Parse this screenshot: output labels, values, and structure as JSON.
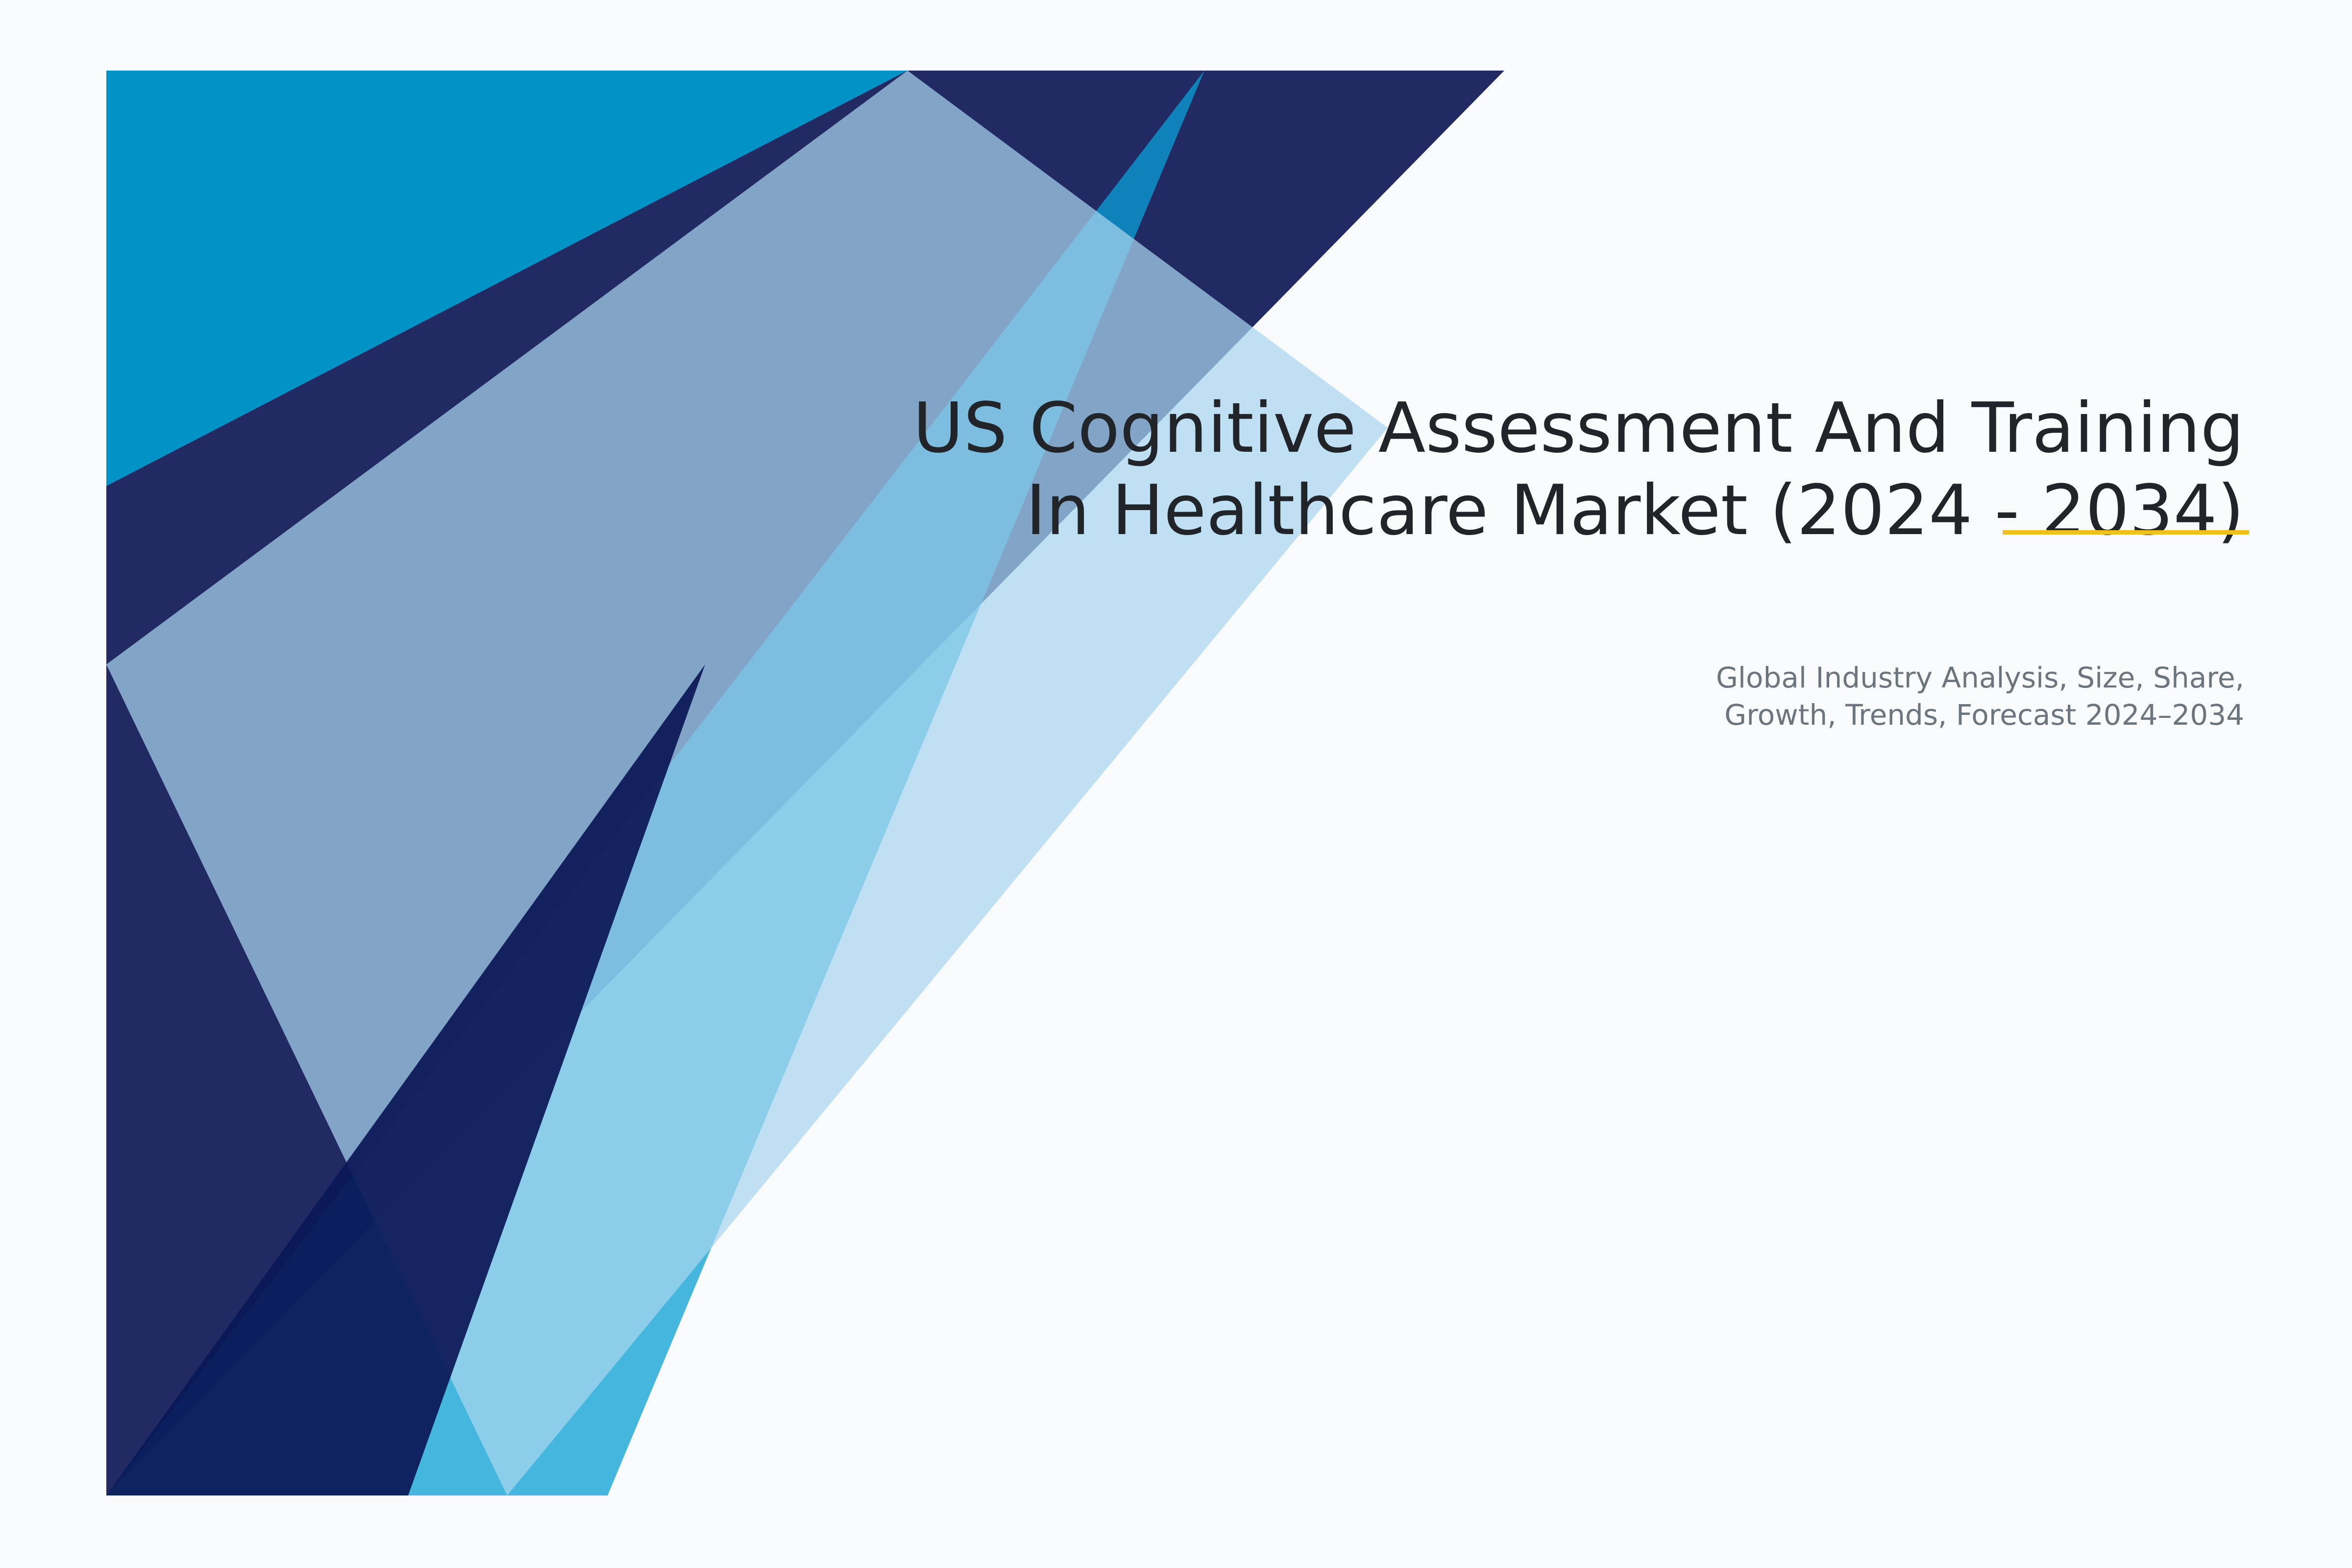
{
  "cover": {
    "title": "US Cognitive Assessment And Training In Healthcare Market (2024 - 2034)",
    "subtitle": "Global Industry Analysis, Size, Share, Growth, Trends, Forecast 2024–2034"
  },
  "colors": {
    "background": "#f8fafc",
    "navy": "#222a63",
    "cyan": "#0192c6",
    "deep_navy": "#0e1a57",
    "accent_underline": "#f5bd1f",
    "title_text": "#212529",
    "subtitle_text": "#6c757d"
  }
}
